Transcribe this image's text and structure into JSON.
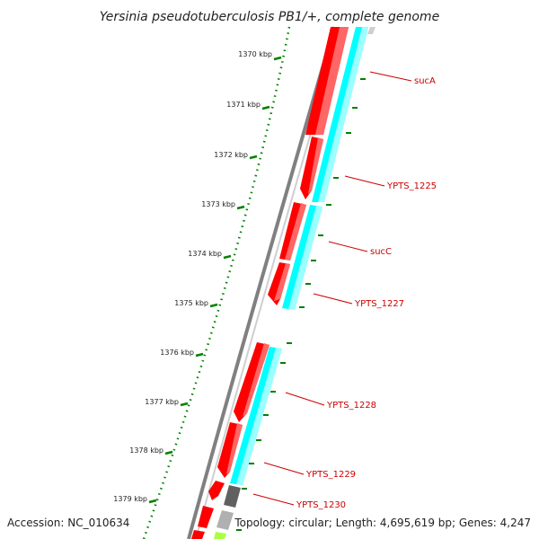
{
  "title": "Yersinia pseudotuberculosis PB1/+, complete genome",
  "footer": {
    "accession": "Accession: NC_010634",
    "topology": "Topology: circular; Length: 4,695,619 bp; Genes: 4,247"
  },
  "colors": {
    "cds_forward": "#ff0000",
    "cds_highlight": "#ff6666",
    "cds_reverse_track": "#00ffff",
    "cds_reverse_highlight": "#99ffff",
    "backbone": "#808080",
    "tick": "#008000",
    "gene_label": "#cc0000",
    "other_feature": "#606060",
    "misc_feature": "#b0b0b0",
    "rna_feature": "#aaff44"
  },
  "ticks": [
    {
      "label": "1370 kbp"
    },
    {
      "label": "1371 kbp"
    },
    {
      "label": "1372 kbp"
    },
    {
      "label": "1373 kbp"
    },
    {
      "label": "1374 kbp"
    },
    {
      "label": "1375 kbp"
    },
    {
      "label": "1376 kbp"
    },
    {
      "label": "1377 kbp"
    },
    {
      "label": "1378 kbp"
    },
    {
      "label": "1379 kbp"
    }
  ],
  "genes": [
    {
      "name": "sucA"
    },
    {
      "name": "YPTS_1225"
    },
    {
      "name": "sucC"
    },
    {
      "name": "YPTS_1227"
    },
    {
      "name": "YPTS_1228"
    },
    {
      "name": "YPTS_1229"
    },
    {
      "name": "YPTS_1230"
    }
  ]
}
